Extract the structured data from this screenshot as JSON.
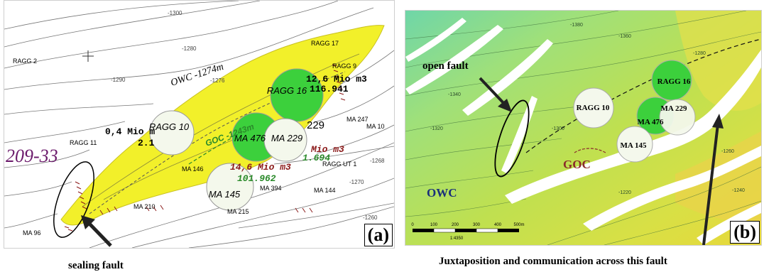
{
  "panel_a": {
    "label": "(a)",
    "caption": "sealing fault",
    "owc_label": "OWC -1274m",
    "goc_label": "GOC -1243m",
    "block_label": "209-33",
    "wells": [
      {
        "name": "RAGG 16",
        "color": "#3cd03c"
      },
      {
        "name": "RAGG 10",
        "color": "#f4f8ec"
      },
      {
        "name": "MA 476",
        "color": "#3cd03c"
      },
      {
        "name": "MA 229",
        "color": "#f4f8ec"
      },
      {
        "name": "MA 145",
        "color": "#f4f8ec"
      }
    ],
    "volumes": [
      {
        "text": "12,6 Mio m3",
        "color": "#000000"
      },
      {
        "text": "116.941",
        "color": "#000000"
      },
      {
        "text": "0,4 Mio m",
        "color": "#000000"
      },
      {
        "text": "2.1",
        "color": "#000000"
      },
      {
        "text": "Mio m3",
        "color": "#8b1a1a"
      },
      {
        "text": "1.694",
        "color": "#2a8a2a"
      },
      {
        "text": "14,6 Mio m3",
        "color": "#8b1a1a"
      },
      {
        "text": "101.962",
        "color": "#2a8a2a"
      }
    ],
    "small_labels": [
      "RAGG 17",
      "RAGG 9",
      "RAGG 2",
      "RAGG 11",
      "MA 247",
      "MA 10",
      "229",
      "RAGG UT 1",
      "MA 394",
      "MA 144",
      "MA 215",
      "MA 146",
      "MA 210",
      "MA 96"
    ],
    "contours": [
      "-1300",
      "-1290",
      "-1280",
      "-1276",
      "-1270",
      "-1268",
      "-1260"
    ]
  },
  "panel_b": {
    "label": "(b)",
    "caption": "Juxtaposition and communication across this fault",
    "open_fault_label": "open fault",
    "goc_label": "GOC",
    "owc_label": "OWC",
    "wells": [
      {
        "name": "RAGG 16",
        "color": "#3cd03c"
      },
      {
        "name": "RAGG 10",
        "color": "#f4f8ec"
      },
      {
        "name": "MA 476",
        "color": "#3cd03c"
      },
      {
        "name": "MA 229",
        "color": "#f4f8ec"
      },
      {
        "name": "MA 145",
        "color": "#f4f8ec"
      }
    ],
    "scale_ticks": [
      "0",
      "100",
      "200",
      "300",
      "400",
      "500m"
    ],
    "scale_ratio": "1:4350",
    "contours": [
      "-1380",
      "-1360",
      "-1340",
      "-1320",
      "-1300",
      "-1280",
      "-1260",
      "-1240",
      "-1220"
    ]
  },
  "colors": {
    "reservoir_yellow": "#f2f02a",
    "gas_green": "#3cd03c",
    "fault_hatch": "#8b1a1a",
    "goc_color": "#8b2b2b",
    "owc_color": "#1a2f7a",
    "block_label_color": "#6b1a6b"
  }
}
